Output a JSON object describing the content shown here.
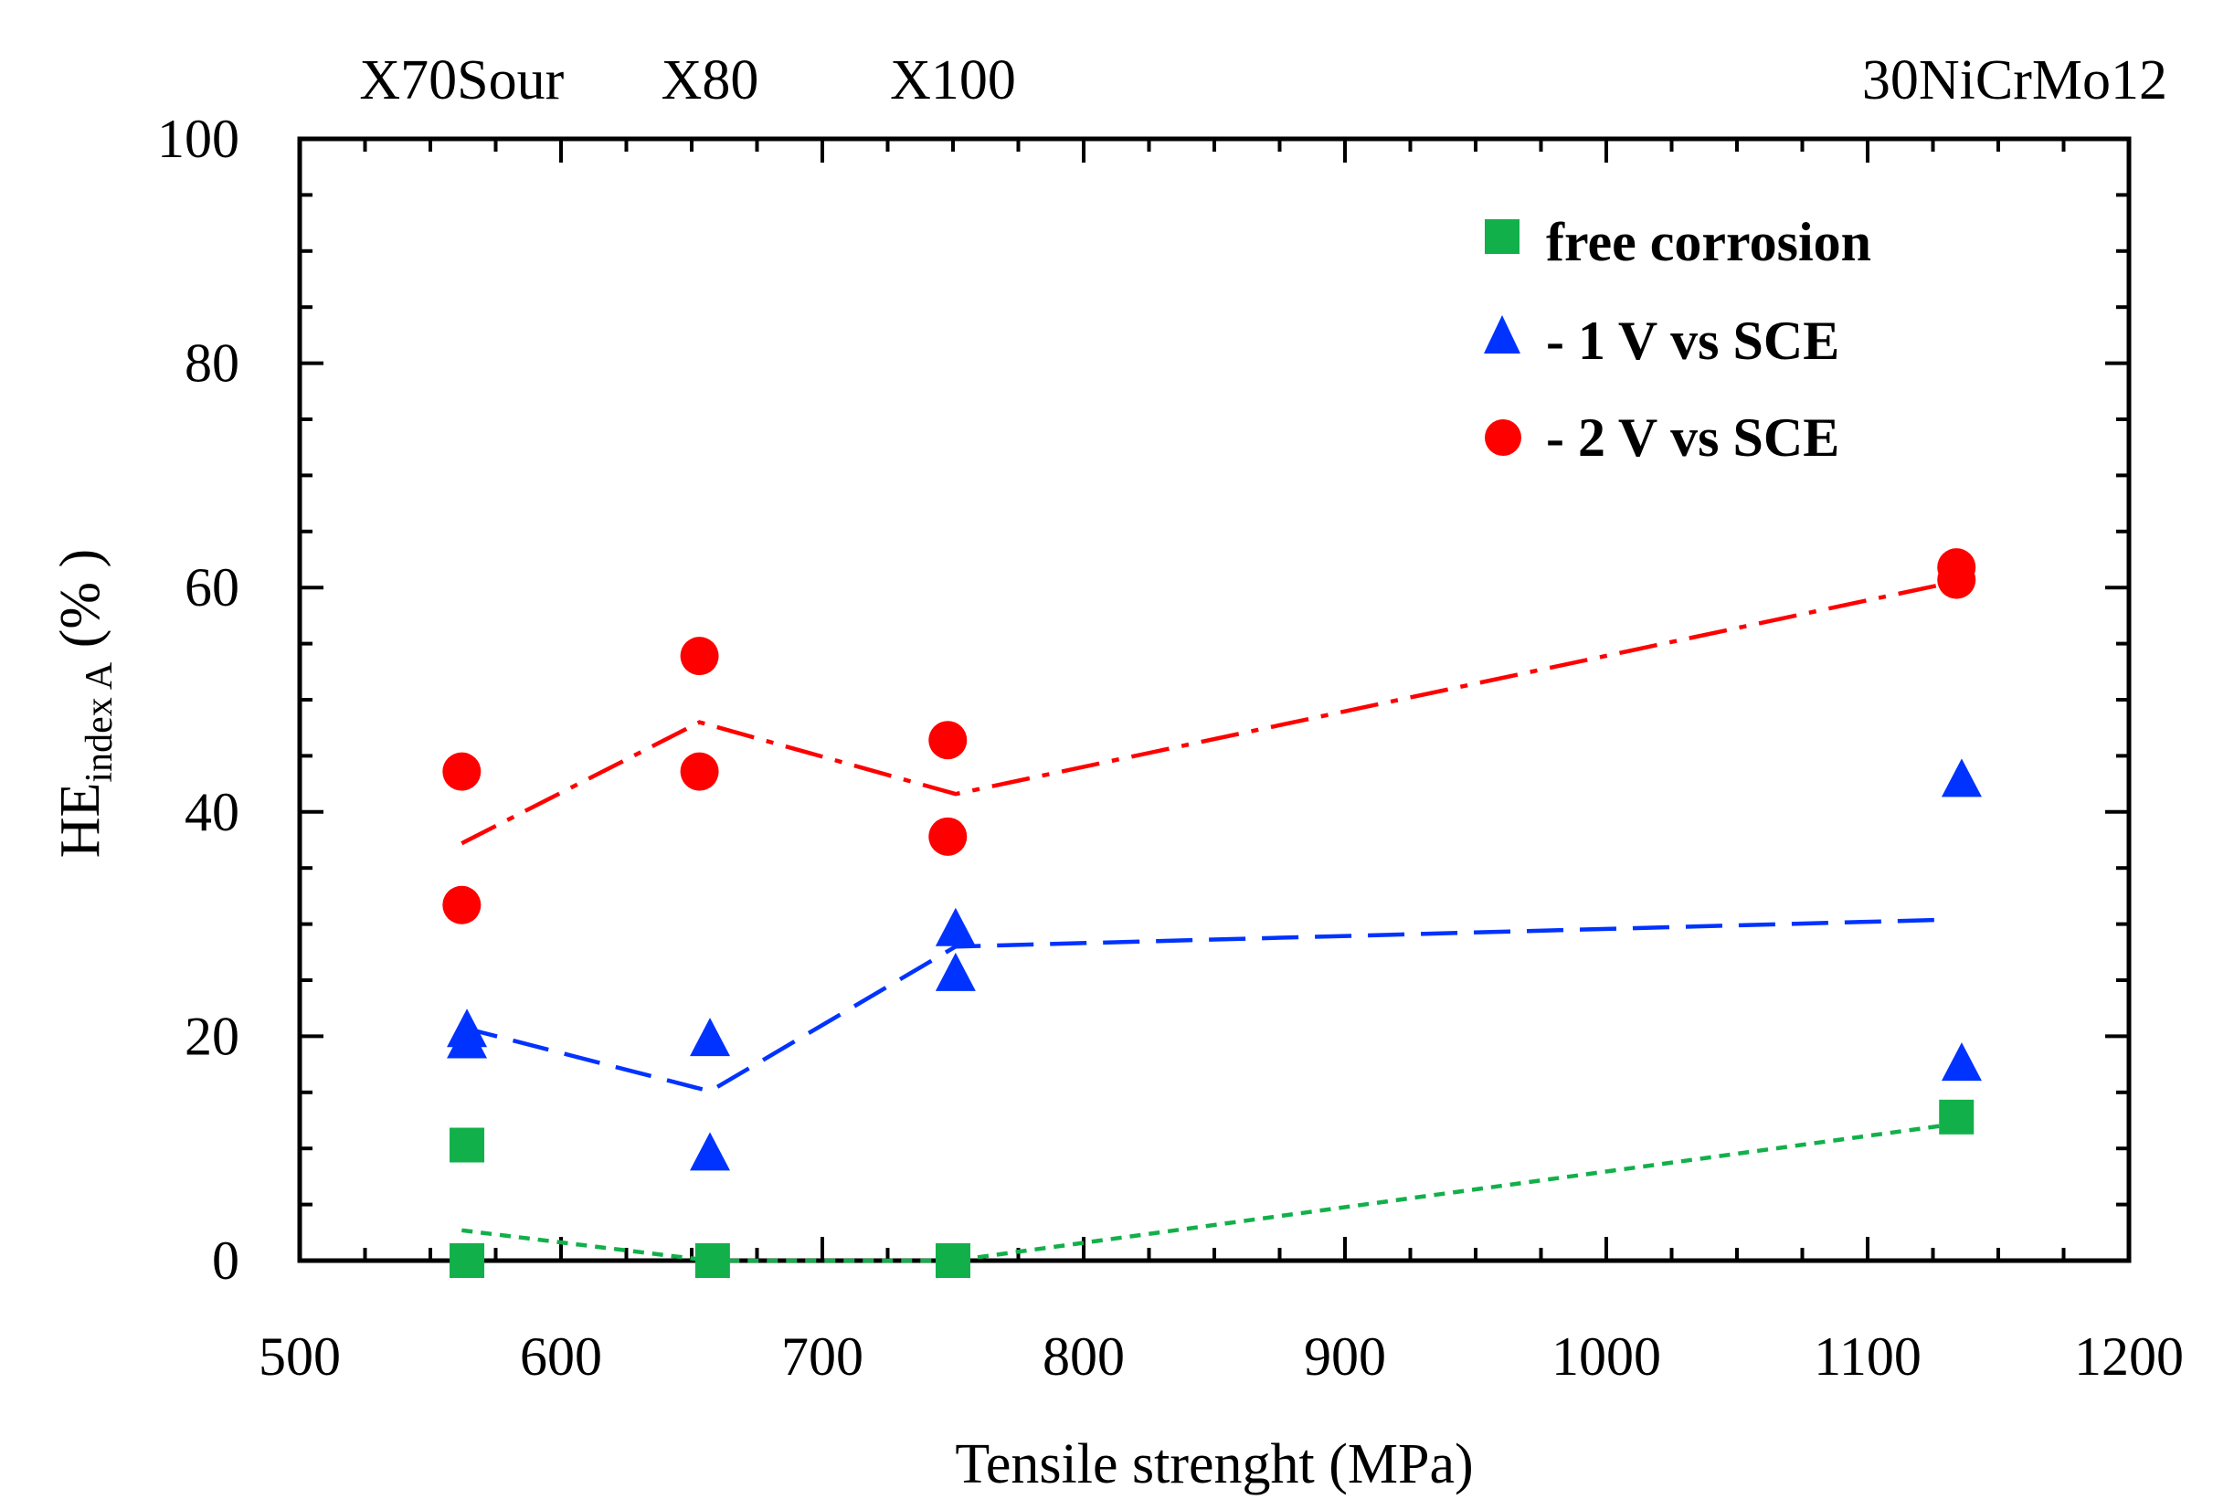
{
  "chart_data": {
    "type": "scatter",
    "xlabel": "Tensile strenght (MPa)",
    "ylabel": {
      "main": "HE",
      "subscript": "index A",
      "unit": " (% )"
    },
    "xlim": [
      500,
      1200
    ],
    "ylim": [
      0,
      100
    ],
    "x_ticks": [
      500,
      600,
      700,
      800,
      900,
      1000,
      1100,
      1200
    ],
    "y_ticks": [
      0,
      20,
      40,
      60,
      80,
      100
    ],
    "top_labels": [
      {
        "text": "X70Sour",
        "x": 562
      },
      {
        "text": "X80",
        "x": 657
      },
      {
        "text": "X100",
        "x": 750
      },
      {
        "text": "30NiCrMo12",
        "x": 1134
      }
    ],
    "series": [
      {
        "name": "free corrosion",
        "marker": "square",
        "color": "#12B04A",
        "points": [
          [
            564,
            10.3
          ],
          [
            564,
            0
          ],
          [
            658,
            0
          ],
          [
            750,
            0
          ],
          [
            1134,
            12.8
          ]
        ],
        "trend": {
          "dash": "dotted",
          "points": [
            [
              562,
              2.7
            ],
            [
              657,
              0
            ],
            [
              750,
              0
            ],
            [
              1134,
              12.2
            ]
          ]
        }
      },
      {
        "name": "- 1 V vs SCE",
        "marker": "triangle",
        "color": "#0033FF",
        "points": [
          [
            564,
            20.5
          ],
          [
            564,
            19.5
          ],
          [
            657,
            19.7
          ],
          [
            657,
            9.5
          ],
          [
            751,
            29.5
          ],
          [
            751,
            25.5
          ],
          [
            1136,
            42.8
          ],
          [
            1136,
            17.5
          ]
        ],
        "trend": {
          "dash": "dashed",
          "points": [
            [
              562,
              20.8
            ],
            [
              657,
              15.1
            ],
            [
              751,
              28
            ],
            [
              1131,
              30.4
            ]
          ]
        }
      },
      {
        "name": "- 2 V vs SCE",
        "marker": "circle",
        "color": "#FF0000",
        "points": [
          [
            562,
            43.6
          ],
          [
            562,
            31.7
          ],
          [
            653,
            53.9
          ],
          [
            653,
            43.6
          ],
          [
            748,
            46.4
          ],
          [
            748,
            37.8
          ],
          [
            1134,
            61.8
          ],
          [
            1134,
            60.7
          ]
        ],
        "trend": {
          "dash": "dashdot",
          "points": [
            [
              562,
              37.2
            ],
            [
              653,
              48
            ],
            [
              751,
              41.6
            ],
            [
              1131,
              60.4
            ]
          ]
        }
      }
    ]
  }
}
